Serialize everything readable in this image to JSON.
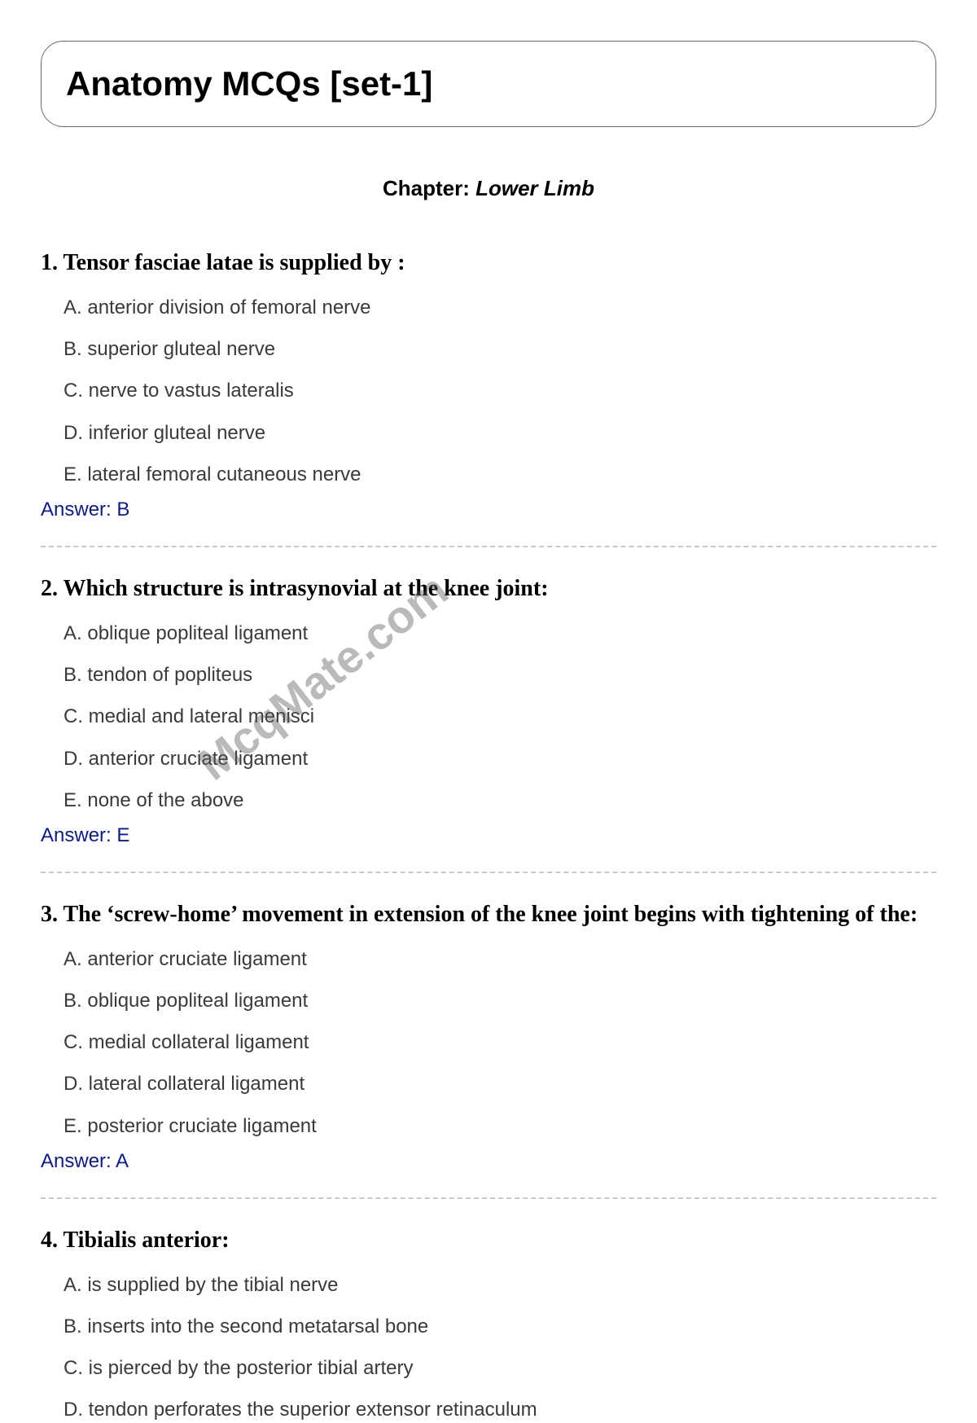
{
  "title": "Anatomy MCQs [set-1]",
  "chapter_label": "Chapter: ",
  "chapter_name": "Lower Limb",
  "watermark": "McqMate.com",
  "answer_prefix": "Answer: ",
  "colors": {
    "text": "#000000",
    "option_text": "#3a3a3a",
    "answer": "#0b1b8e",
    "border": "#6b6b6b",
    "divider": "#c9c9c9",
    "background": "#ffffff",
    "watermark": "rgba(90,90,90,0.42)"
  },
  "fonts": {
    "title_size": 42,
    "chapter_size": 26,
    "question_size": 28,
    "option_size": 24,
    "answer_size": 24,
    "watermark_size": 56
  },
  "questions": [
    {
      "number": "1.",
      "text": "Tensor fasciae latae is supplied by :",
      "options": [
        "A. anterior division of femoral nerve",
        "B. superior gluteal nerve",
        "C. nerve to vastus lateralis",
        "D. inferior gluteal nerve",
        "E. lateral femoral cutaneous nerve"
      ],
      "answer": "B",
      "show_divider": true
    },
    {
      "number": "2.",
      "text": "Which structure is intrasynovial at the knee joint:",
      "options": [
        "A. oblique popliteal ligament",
        "B. tendon of popliteus",
        "C. medial and lateral menisci",
        "D. anterior cruciate ligament",
        "E. none of the above"
      ],
      "answer": "E",
      "show_divider": true
    },
    {
      "number": "3.",
      "text": "The ‘screw-home’ movement in extension of the knee joint begins with tightening of the:",
      "options": [
        "A. anterior cruciate ligament",
        "B. oblique popliteal ligament",
        "C. medial collateral ligament",
        "D. lateral collateral ligament",
        "E. posterior cruciate ligament"
      ],
      "answer": "A",
      "show_divider": true
    },
    {
      "number": "4.",
      "text": "Tibialis anterior:",
      "options": [
        "A. is supplied by the tibial nerve",
        "B. inserts into the second metatarsal bone",
        "C. is pierced by the posterior tibial artery",
        "D. tendon perforates the superior extensor retinaculum"
      ],
      "answer": null,
      "show_divider": false
    }
  ]
}
